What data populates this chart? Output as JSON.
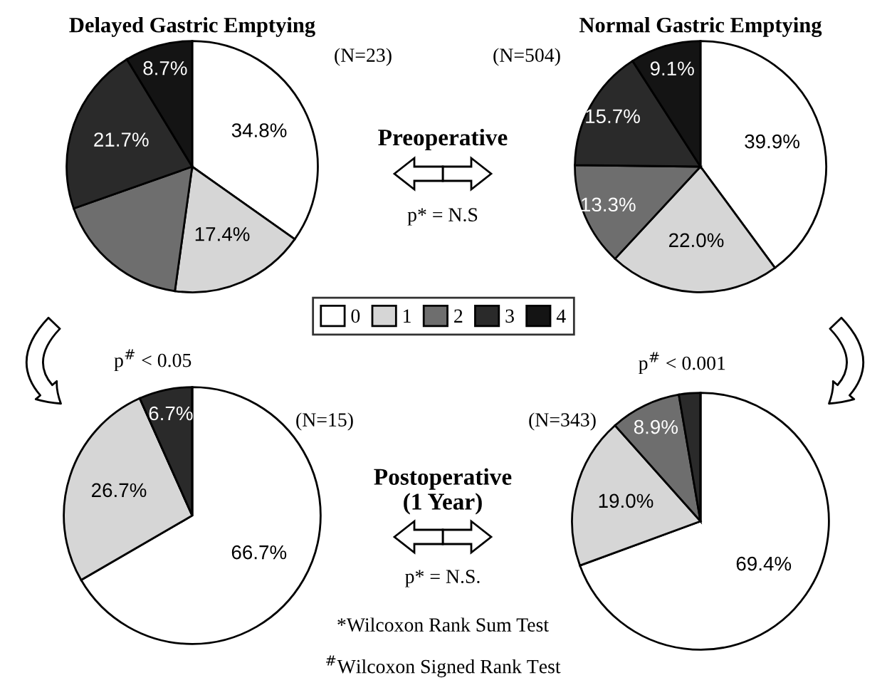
{
  "chart_data": [
    {
      "type": "pie",
      "title": "Delayed Gastric Emptying",
      "categories": [
        "0",
        "1",
        "2",
        "3",
        "4"
      ],
      "values": [
        34.8,
        17.4,
        17.4,
        21.7,
        8.7
      ],
      "value_labels": [
        "34.8%",
        "17.4%",
        null,
        "21.7%",
        "8.7%"
      ],
      "colors": [
        "#ffffff",
        "#d6d6d6",
        "#6e6e6e",
        "#2a2a2a",
        "#141414"
      ],
      "legend": "bottom right",
      "annotations": [
        "(N=23)",
        "Preoperative",
        "p* = N.S",
        "p$^{#}$ < 0.05"
      ]
    },
    {
      "type": "pie",
      "title": "Normal Gastric Emptying",
      "categories": [
        null,
        null,
        null,
        null,
        null
      ],
      "values": [
        39.9,
        22.0,
        13.3,
        15.7,
        9.1
      ],
      "value_labels": [
        "39.9%",
        "22.0%",
        "13.3%",
        "15.7%",
        "9.1%"
      ],
      "colors": [
        "#ffffff",
        "#d6d6d6",
        "#6e6e6e",
        "#2a2a2a",
        "#141414"
      ],
      "annotations": [
        "(N=504)",
        "p$^{#}$ < 0.001"
      ]
    },
    {
      "type": "pie",
      "categories": [
        null,
        null,
        null,
        null,
        null
      ],
      "values": [
        66.7,
        26.7,
        0,
        6.7,
        0
      ],
      "value_labels": [
        "66.7%",
        "26.7%",
        null,
        "6.7%",
        null
      ],
      "colors": [
        "#ffffff",
        "#d6d6d6",
        "#6e6e6e",
        "#2a2a2a",
        "#141414"
      ],
      "annotations": [
        "(N=15)",
        "Postoperative\n(1 Year)",
        "p* = N.S.",
        "*Wilcoxon Rank Sum Test",
        "$^{#}$Wilcoxon Signed Rank Test"
      ]
    },
    {
      "type": "pie",
      "categories": [
        null,
        null,
        null,
        null,
        null
      ],
      "values": [
        69.4,
        19.0,
        8.9,
        2.7,
        0
      ],
      "value_labels": [
        "69.4%",
        "19.0%",
        "8.9%",
        null,
        null
      ],
      "colors": [
        "#ffffff",
        "#d6d6d6",
        "#6e6e6e",
        "#2a2a2a",
        "#141414"
      ],
      "annotations": [
        "(N=343)"
      ]
    }
  ]
}
